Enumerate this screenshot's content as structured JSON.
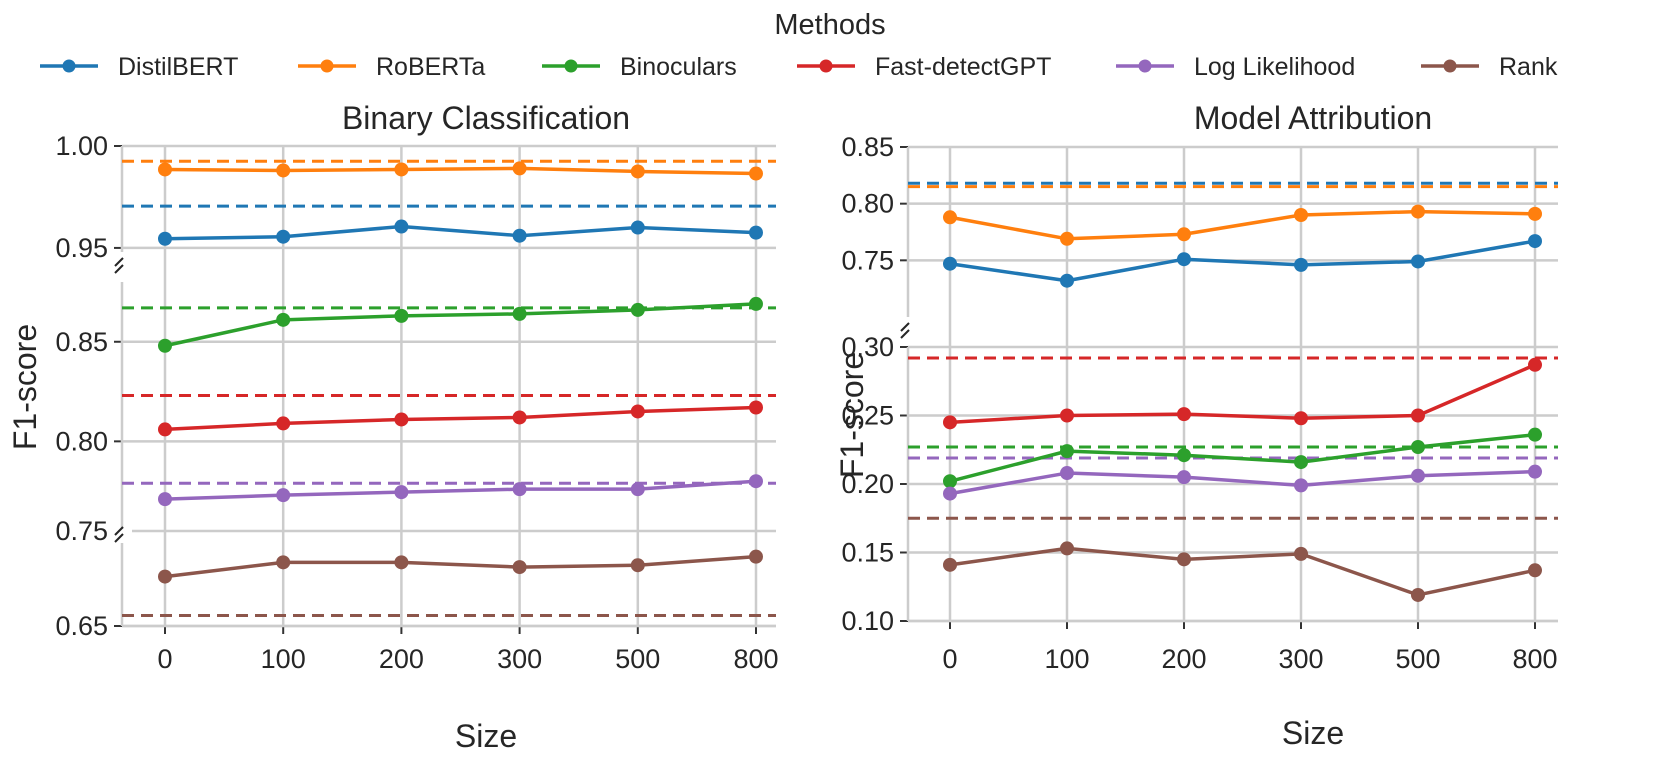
{
  "legend": {
    "title": "Methods",
    "entries": [
      {
        "name": "DistilBERT",
        "color": "#1f77b4"
      },
      {
        "name": "RoBERTa",
        "color": "#ff7f0e"
      },
      {
        "name": "Binoculars",
        "color": "#2ca02c"
      },
      {
        "name": "Fast-detectGPT",
        "color": "#d62728"
      },
      {
        "name": "Log Likelihood",
        "color": "#9467bd"
      },
      {
        "name": "Rank",
        "color": "#8c564b"
      }
    ]
  },
  "chart_data": [
    {
      "type": "line",
      "title": "Binary Classification",
      "xlabel": "Size",
      "ylabel": "F1-score",
      "categories": [
        "0",
        "100",
        "200",
        "300",
        "500",
        "800"
      ],
      "grid": true,
      "broken_axis": true,
      "segments": [
        {
          "ylim": [
            0.948,
            1.0
          ],
          "ticks": [
            "0.95",
            "1.00"
          ],
          "tick_values": [
            0.95,
            1.0
          ]
        },
        {
          "ylim": [
            0.755,
            0.88
          ],
          "ticks": [
            "0.80",
            "0.85"
          ],
          "tick_values": [
            0.8,
            0.85
          ]
        },
        {
          "ylim": [
            0.65,
            0.75
          ],
          "ticks": [
            "0.65",
            "0.75"
          ],
          "tick_values": [
            0.65,
            0.75
          ]
        }
      ],
      "series": [
        {
          "name": "DistilBERT",
          "values": [
            0.9545,
            0.9555,
            0.9605,
            0.956,
            0.96,
            0.9575
          ],
          "baseline": 0.9705
        },
        {
          "name": "RoBERTa",
          "values": [
            0.9885,
            0.988,
            0.9885,
            0.989,
            0.9875,
            0.9865
          ],
          "baseline": 0.9925
        },
        {
          "name": "Binoculars",
          "values": [
            0.848,
            0.861,
            0.863,
            0.864,
            0.866,
            0.869
          ],
          "baseline": 0.867
        },
        {
          "name": "Fast-detectGPT",
          "values": [
            0.806,
            0.809,
            0.811,
            0.812,
            0.815,
            0.817
          ],
          "baseline": 0.823
        },
        {
          "name": "Log Likelihood",
          "values": [
            0.771,
            0.773,
            0.7745,
            0.776,
            0.776,
            0.78
          ],
          "baseline": 0.779
        },
        {
          "name": "Rank",
          "values": [
            0.702,
            0.717,
            0.717,
            0.712,
            0.714,
            0.723
          ],
          "baseline": 0.661
        }
      ]
    },
    {
      "type": "line",
      "title": "Model Attribution",
      "xlabel": "Size",
      "ylabel": "F1-score",
      "categories": [
        "0",
        "100",
        "200",
        "300",
        "500",
        "800"
      ],
      "grid": true,
      "broken_axis": true,
      "segments": [
        {
          "ylim": [
            0.7,
            0.85
          ],
          "ticks": [
            "0.75",
            "0.80",
            "0.85"
          ],
          "tick_values": [
            0.75,
            0.8,
            0.85
          ]
        },
        {
          "ylim": [
            0.1,
            0.3
          ],
          "ticks": [
            "0.10",
            "0.15",
            "0.20",
            "0.25",
            "0.30"
          ],
          "tick_values": [
            0.1,
            0.15,
            0.2,
            0.25,
            0.3
          ]
        }
      ],
      "series": [
        {
          "name": "DistilBERT",
          "values": [
            0.747,
            0.732,
            0.751,
            0.746,
            0.749,
            0.767
          ],
          "baseline": 0.818
        },
        {
          "name": "RoBERTa",
          "values": [
            0.788,
            0.769,
            0.773,
            0.79,
            0.793,
            0.791
          ],
          "baseline": 0.815
        },
        {
          "name": "Binoculars",
          "values": [
            0.202,
            0.224,
            0.221,
            0.216,
            0.227,
            0.236
          ],
          "baseline": 0.227
        },
        {
          "name": "Fast-detectGPT",
          "values": [
            0.245,
            0.25,
            0.251,
            0.248,
            0.25,
            0.287
          ],
          "baseline": 0.292
        },
        {
          "name": "Log Likelihood",
          "values": [
            0.193,
            0.208,
            0.205,
            0.199,
            0.206,
            0.209
          ],
          "baseline": 0.219
        },
        {
          "name": "Rank",
          "values": [
            0.141,
            0.153,
            0.145,
            0.149,
            0.119,
            0.137
          ],
          "baseline": 0.175
        }
      ]
    }
  ]
}
